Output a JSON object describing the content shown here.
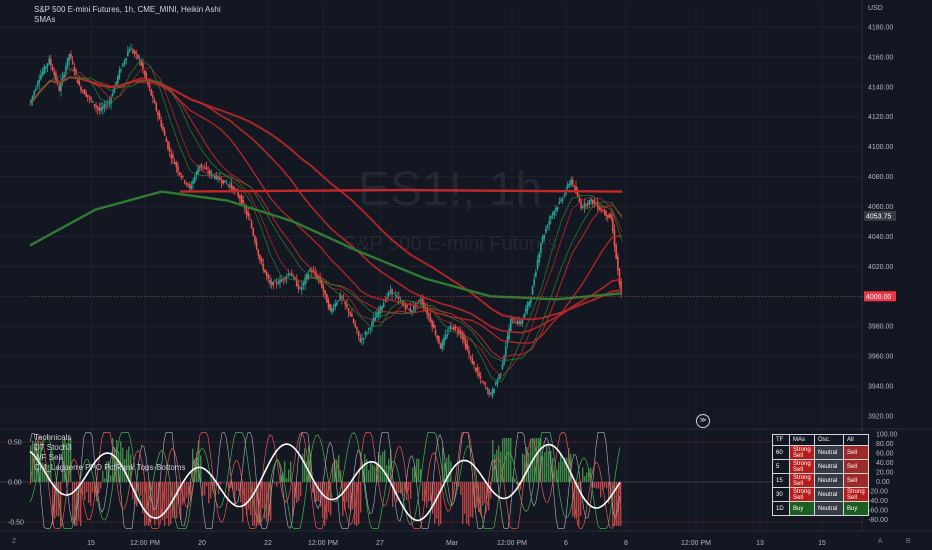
{
  "header": {
    "title": "S&P 500 E-mini Futures, 1h, CME_MINI, Heikin Ashi",
    "indicator": "SMAs",
    "currency": "USD"
  },
  "watermark": {
    "symbol": "ES1!, 1h",
    "name": "S&P 500 E-mini Futures"
  },
  "indicator_panel": {
    "labels": [
      "Technicals",
      "DT Stoch3",
      "WF Sell",
      "CM_Laguerre PPO PctRank Tops-Bottoms"
    ]
  },
  "colors": {
    "background": "#131722",
    "grid": "#1e222d",
    "candle_up": "#26a69a",
    "candle_down": "#ef5350",
    "ma_red": "#c62828",
    "ma_green": "#2e7d32",
    "price_badge": "#f23645"
  },
  "tech_table": {
    "headers": [
      "TF",
      "MAs",
      "Osc.",
      "All"
    ],
    "rows": [
      {
        "tf": "60",
        "mas": "Strong Sell",
        "osc": "Neutral",
        "all": "Sell"
      },
      {
        "tf": "5",
        "mas": "Strong Sell",
        "osc": "Neutral",
        "all": "Sell"
      },
      {
        "tf": "15",
        "mas": "Strong Sell",
        "osc": "Neutral",
        "all": "Sell"
      },
      {
        "tf": "30",
        "mas": "Strong Sell",
        "osc": "Neutral",
        "all": "Strong Sell"
      },
      {
        "tf": "1D",
        "mas": "Buy",
        "osc": "Neutral",
        "all": "Buy"
      }
    ]
  },
  "bottom_bar": {
    "left_icon": "Z",
    "right_icon_1": "A",
    "right_icon_2": "B"
  },
  "chart_data": [
    {
      "type": "candlestick",
      "title": "S&P 500 E-mini Futures, 1h, CME_MINI, Heikin Ashi",
      "ylim": [
        3912,
        4196
      ],
      "y_ticks": [
        3920,
        3940,
        3960,
        3980,
        4000,
        4020,
        4040,
        4060,
        4080,
        4100,
        4120,
        4140,
        4160,
        4180
      ],
      "x_ticks": [
        "15",
        "12:00 PM",
        "20",
        "22",
        "12:00 PM",
        "27",
        "Mar",
        "12:00 PM",
        "6",
        "8",
        "12:00 PM",
        "13",
        "15"
      ],
      "price_labels": [
        {
          "value": 4053.75,
          "label": "4053.75"
        },
        {
          "value": 4000.0,
          "label": "4000.00"
        }
      ],
      "close_path": [
        4128,
        4146,
        4158,
        4138,
        4162,
        4140,
        4132,
        4124,
        4130,
        4150,
        4166,
        4158,
        4138,
        4118,
        4096,
        4082,
        4072,
        4088,
        4082,
        4078,
        4074,
        4066,
        4050,
        4024,
        4008,
        4010,
        4016,
        4004,
        4018,
        4010,
        3990,
        4000,
        3988,
        3970,
        3980,
        3992,
        4004,
        3996,
        3990,
        3998,
        3984,
        3966,
        3980,
        3976,
        3958,
        3944,
        3934,
        3950,
        3984,
        3982,
        4000,
        4036,
        4054,
        4064,
        4078,
        4060,
        4064,
        4058,
        4052,
        4000
      ],
      "moving_averages": [
        {
          "color": "ma_red",
          "values": [
            4070,
            4071,
            4070
          ]
        },
        {
          "color": "ma_green",
          "values": [
            4034,
            4058,
            4070,
            4064,
            4050,
            4030,
            4012,
            4000,
            3998,
            4002
          ]
        }
      ]
    },
    {
      "type": "line",
      "ylim": [
        -0.6,
        0.65
      ],
      "y_ticks_left": [
        0.5,
        0.0,
        -0.5
      ],
      "y_ticks_right": [
        100.0,
        80.0,
        60.0,
        40.0,
        20.0,
        0.0,
        -20.0,
        -40.0,
        -60.0,
        -80.0
      ]
    }
  ]
}
